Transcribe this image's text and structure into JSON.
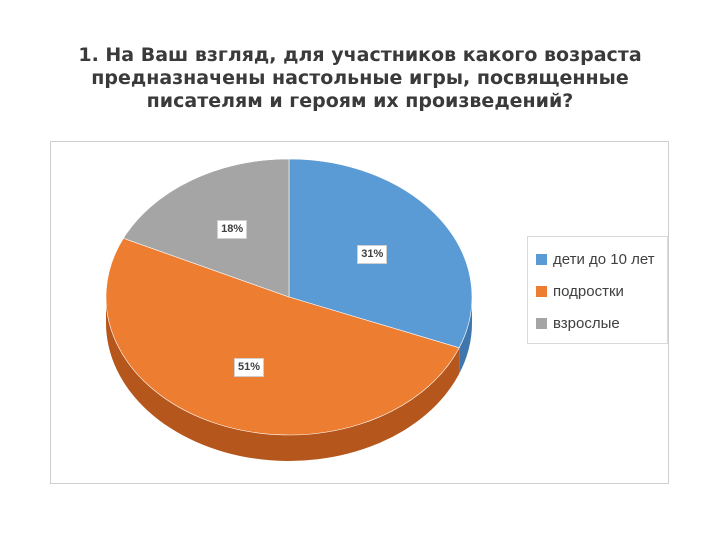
{
  "title_lines": [
    "1. На Ваш взгляд, для участников какого возраста",
    "предназначены  настольные  игры, посвященные",
    "писателям и героям их произведений?"
  ],
  "chart_data": {
    "type": "pie",
    "categories": [
      "дети до 10 лет",
      "подростки",
      "взрослые"
    ],
    "values": [
      31,
      51,
      18
    ],
    "labels": [
      "31%",
      "51%",
      "18%"
    ],
    "colors": [
      "#5b9bd5",
      "#ed7d31",
      "#a5a5a5"
    ],
    "side_colors": [
      "#3f76ad",
      "#b5571c",
      "#7d7d7d"
    ],
    "legend_position": "right",
    "style": "3d"
  }
}
